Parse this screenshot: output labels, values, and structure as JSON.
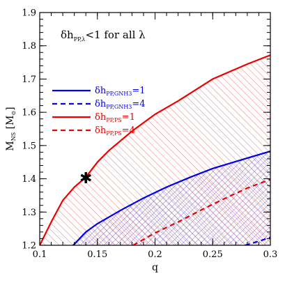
{
  "chart_data": {
    "type": "line",
    "xlabel": "q",
    "ylabel": {
      "main": "M",
      "sub": "NS",
      "unit": "[M",
      "unit_sub": "⊙",
      "close": "]"
    },
    "xlim": [
      0.1,
      0.3
    ],
    "ylim": [
      1.2,
      1.9
    ],
    "xticks": [
      0.1,
      0.15,
      0.2,
      0.25,
      0.3
    ],
    "xtick_labels": [
      "0.1",
      "0.15",
      "0.2",
      "0.25",
      "0.3"
    ],
    "yticks": [
      1.2,
      1.3,
      1.4,
      1.5,
      1.6,
      1.7,
      1.8,
      1.9
    ],
    "ytick_labels": [
      "1.2",
      "1.3",
      "1.4",
      "1.5",
      "1.6",
      "1.7",
      "1.8",
      "1.9"
    ],
    "annotation": {
      "prefix": "δh",
      "sub": "PP,λ",
      "suffix": "<1  for all  λ"
    },
    "series": [
      {
        "name": "δh_PP,GNH3=1",
        "label_main": "δh",
        "label_sub": "PP,GNH3",
        "label_suffix": "=1",
        "color": "#0000ee",
        "style": "solid",
        "x": [
          0.129,
          0.14,
          0.15,
          0.17,
          0.19,
          0.21,
          0.23,
          0.25,
          0.27,
          0.3
        ],
        "y": [
          1.2,
          1.24,
          1.265,
          1.305,
          1.342,
          1.375,
          1.404,
          1.431,
          1.452,
          1.483
        ]
      },
      {
        "name": "δh_PP,GNH3=4",
        "label_main": "δh",
        "label_sub": "PP,GNH3",
        "label_suffix": "=4",
        "color": "#0000ee",
        "style": "dashed",
        "x": [
          0.278,
          0.29,
          0.3
        ],
        "y": [
          1.2,
          1.212,
          1.224
        ]
      },
      {
        "name": "δh_PP,PS=1",
        "label_main": "δh",
        "label_sub": "PP,PS",
        "label_suffix": "=1",
        "color": "#ee0000",
        "style": "solid",
        "x": [
          0.1,
          0.11,
          0.12,
          0.13,
          0.14,
          0.15,
          0.16,
          0.18,
          0.2,
          0.22,
          0.25,
          0.28,
          0.3
        ],
        "y": [
          1.2,
          1.27,
          1.335,
          1.375,
          1.405,
          1.45,
          1.485,
          1.543,
          1.594,
          1.634,
          1.7,
          1.745,
          1.772
        ]
      },
      {
        "name": "δh_PP,PS=4",
        "label_main": "δh",
        "label_sub": "PP,PS",
        "label_suffix": "=4",
        "color": "#ee0000",
        "style": "dashed",
        "x": [
          0.181,
          0.2,
          0.22,
          0.24,
          0.26,
          0.28,
          0.3
        ],
        "y": [
          1.2,
          1.237,
          1.27,
          1.306,
          1.34,
          1.372,
          1.398
        ]
      }
    ],
    "marker": {
      "x": 0.14,
      "y": 1.4,
      "symbol": "✱"
    },
    "hatch": {
      "red_region": "above δh_PP,PS=1 (crimson diagonal)",
      "blue_region": "above δh_PP,GNH3=1 (blue cross)"
    },
    "grid": false,
    "legend_placement": "left-middle"
  }
}
